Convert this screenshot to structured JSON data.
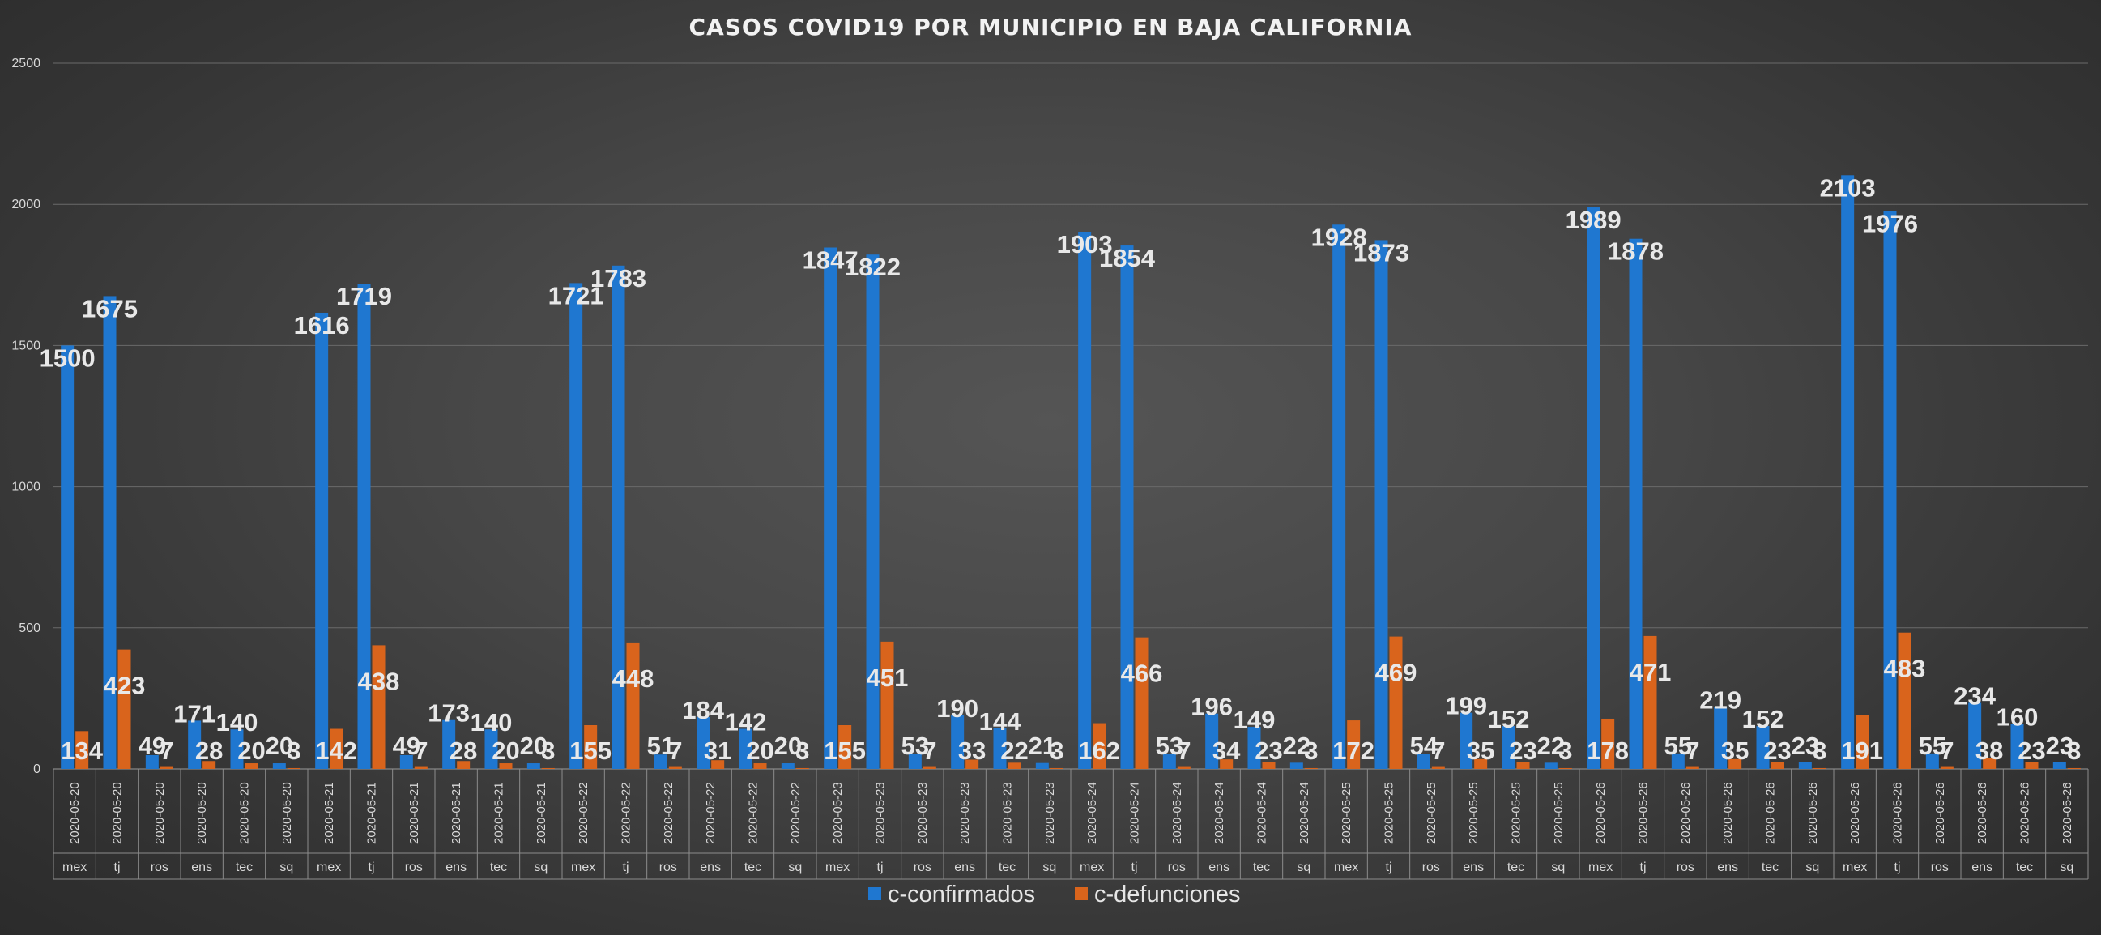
{
  "chart_data": {
    "type": "bar",
    "title": "CASOS COVID19 POR MUNICIPIO EN BAJA CALIFORNIA",
    "xlabel": "",
    "ylabel": "",
    "ylim": [
      0,
      2500
    ],
    "yticks": [
      0,
      500,
      1000,
      1500,
      2000,
      2500
    ],
    "grid": true,
    "legend_position": "bottom",
    "categories": [
      {
        "date": "2020-05-20",
        "municipio": "mex"
      },
      {
        "date": "2020-05-20",
        "municipio": "tj"
      },
      {
        "date": "2020-05-20",
        "municipio": "ros"
      },
      {
        "date": "2020-05-20",
        "municipio": "ens"
      },
      {
        "date": "2020-05-20",
        "municipio": "tec"
      },
      {
        "date": "2020-05-20",
        "municipio": "sq"
      },
      {
        "date": "2020-05-21",
        "municipio": "mex"
      },
      {
        "date": "2020-05-21",
        "municipio": "tj"
      },
      {
        "date": "2020-05-21",
        "municipio": "ros"
      },
      {
        "date": "2020-05-21",
        "municipio": "ens"
      },
      {
        "date": "2020-05-21",
        "municipio": "tec"
      },
      {
        "date": "2020-05-21",
        "municipio": "sq"
      },
      {
        "date": "2020-05-22",
        "municipio": "mex"
      },
      {
        "date": "2020-05-22",
        "municipio": "tj"
      },
      {
        "date": "2020-05-22",
        "municipio": "ros"
      },
      {
        "date": "2020-05-22",
        "municipio": "ens"
      },
      {
        "date": "2020-05-22",
        "municipio": "tec"
      },
      {
        "date": "2020-05-22",
        "municipio": "sq"
      },
      {
        "date": "2020-05-23",
        "municipio": "mex"
      },
      {
        "date": "2020-05-23",
        "municipio": "tj"
      },
      {
        "date": "2020-05-23",
        "municipio": "ros"
      },
      {
        "date": "2020-05-23",
        "municipio": "ens"
      },
      {
        "date": "2020-05-23",
        "municipio": "tec"
      },
      {
        "date": "2020-05-23",
        "municipio": "sq"
      },
      {
        "date": "2020-05-24",
        "municipio": "mex"
      },
      {
        "date": "2020-05-24",
        "municipio": "tj"
      },
      {
        "date": "2020-05-24",
        "municipio": "ros"
      },
      {
        "date": "2020-05-24",
        "municipio": "ens"
      },
      {
        "date": "2020-05-24",
        "municipio": "tec"
      },
      {
        "date": "2020-05-24",
        "municipio": "sq"
      },
      {
        "date": "2020-05-25",
        "municipio": "mex"
      },
      {
        "date": "2020-05-25",
        "municipio": "tj"
      },
      {
        "date": "2020-05-25",
        "municipio": "ros"
      },
      {
        "date": "2020-05-25",
        "municipio": "ens"
      },
      {
        "date": "2020-05-25",
        "municipio": "tec"
      },
      {
        "date": "2020-05-25",
        "municipio": "sq"
      },
      {
        "date": "2020-05-26",
        "municipio": "mex"
      },
      {
        "date": "2020-05-26",
        "municipio": "tj"
      },
      {
        "date": "2020-05-26",
        "municipio": "ros"
      },
      {
        "date": "2020-05-26",
        "municipio": "ens"
      },
      {
        "date": "2020-05-26",
        "municipio": "tec"
      },
      {
        "date": "2020-05-26",
        "municipio": "sq"
      },
      {
        "date": "2020-05-26",
        "municipio": "mex"
      },
      {
        "date": "2020-05-26",
        "municipio": "tj"
      },
      {
        "date": "2020-05-26",
        "municipio": "ros"
      },
      {
        "date": "2020-05-26",
        "municipio": "ens"
      },
      {
        "date": "2020-05-26",
        "municipio": "tec"
      },
      {
        "date": "2020-05-26",
        "municipio": "sq"
      }
    ],
    "series": [
      {
        "name": "c-confirmados",
        "color": "#1f77d0",
        "values": [
          1500,
          1675,
          49,
          171,
          140,
          20,
          1616,
          1719,
          49,
          173,
          140,
          20,
          1721,
          1783,
          51,
          184,
          142,
          20,
          1847,
          1822,
          53,
          190,
          144,
          21,
          1903,
          1854,
          53,
          196,
          149,
          22,
          1928,
          1873,
          54,
          199,
          152,
          22,
          1989,
          1878,
          55,
          219,
          152,
          23,
          2103,
          1976,
          55,
          234,
          160,
          23
        ],
        "labels": [
          "1500",
          "1675",
          "49",
          "171",
          "140",
          "20",
          "1616",
          "1719",
          "49",
          "173",
          "140",
          "20",
          "1721",
          "1783",
          "51",
          "184",
          "142",
          "20",
          "1847",
          "1822",
          "53",
          "190",
          "144",
          "21",
          "1903",
          "1854",
          "53",
          "196",
          "149",
          "22",
          "1928",
          "1873",
          "54",
          "199",
          "152",
          "22",
          "1989",
          "1878",
          "55",
          "219",
          "152",
          "23",
          "2103",
          "1976",
          "55",
          "234",
          "160",
          "23"
        ]
      },
      {
        "name": "c-defunciones",
        "color": "#d9641c",
        "values": [
          134,
          423,
          7,
          28,
          20,
          3,
          142,
          438,
          7,
          28,
          20,
          3,
          155,
          448,
          7,
          31,
          20,
          3,
          155,
          451,
          7,
          33,
          22,
          3,
          162,
          466,
          7,
          34,
          23,
          3,
          172,
          469,
          7,
          35,
          23,
          3,
          178,
          471,
          7,
          35,
          23,
          3,
          191,
          483,
          7,
          38,
          23,
          3
        ],
        "labels": [
          "134",
          "423",
          "7",
          "28",
          "20",
          "3",
          "142",
          "438",
          "7",
          "28",
          "20",
          "3",
          "155",
          "448",
          "7",
          "31",
          "20",
          "3",
          "155",
          "451",
          "7",
          "33",
          "22",
          "3",
          "162",
          "466",
          "7",
          "34",
          "23",
          "3",
          "172",
          "469",
          "7",
          "35",
          "23",
          "3",
          "178",
          "471",
          "7",
          "35",
          "23",
          "3",
          "191",
          "483",
          "7",
          "38",
          "23",
          "3"
        ]
      }
    ]
  }
}
